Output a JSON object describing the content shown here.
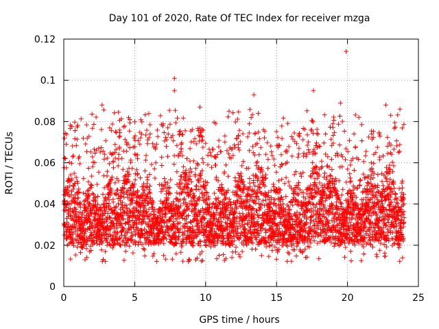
{
  "chart_data": {
    "type": "scatter",
    "title": "Day 101 of 2020, Rate Of TEC Index for receiver mzga",
    "xlabel": "GPS time / hours",
    "ylabel": "ROTI / TECUs",
    "xlim": [
      0,
      25
    ],
    "ylim": [
      0,
      0.12
    ],
    "x_ticks": [
      0,
      5,
      10,
      15,
      20,
      25
    ],
    "x_tick_labels": [
      "0",
      "5",
      "10",
      "15",
      "20",
      "25"
    ],
    "y_ticks": [
      0,
      0.02,
      0.04,
      0.06,
      0.08,
      0.1,
      0.12
    ],
    "y_tick_labels": [
      "0",
      "0.02",
      "0.04",
      "0.06",
      "0.08",
      "0.1",
      "0.12"
    ],
    "grid": true,
    "marker": "+",
    "series_color": "#ff0000",
    "x_range_of_data": [
      0,
      24
    ],
    "typical_band": [
      0.015,
      0.06
    ],
    "notable_points": [
      {
        "x": 7.8,
        "y": 0.101
      },
      {
        "x": 7.8,
        "y": 0.095
      },
      {
        "x": 13.4,
        "y": 0.093
      },
      {
        "x": 17.6,
        "y": 0.095
      },
      {
        "x": 19.5,
        "y": 0.089
      },
      {
        "x": 19.9,
        "y": 0.114
      },
      {
        "x": 22.7,
        "y": 0.088
      },
      {
        "x": 2.7,
        "y": 0.088
      },
      {
        "x": 9.6,
        "y": 0.087
      },
      {
        "x": 23.7,
        "y": 0.086
      }
    ]
  }
}
